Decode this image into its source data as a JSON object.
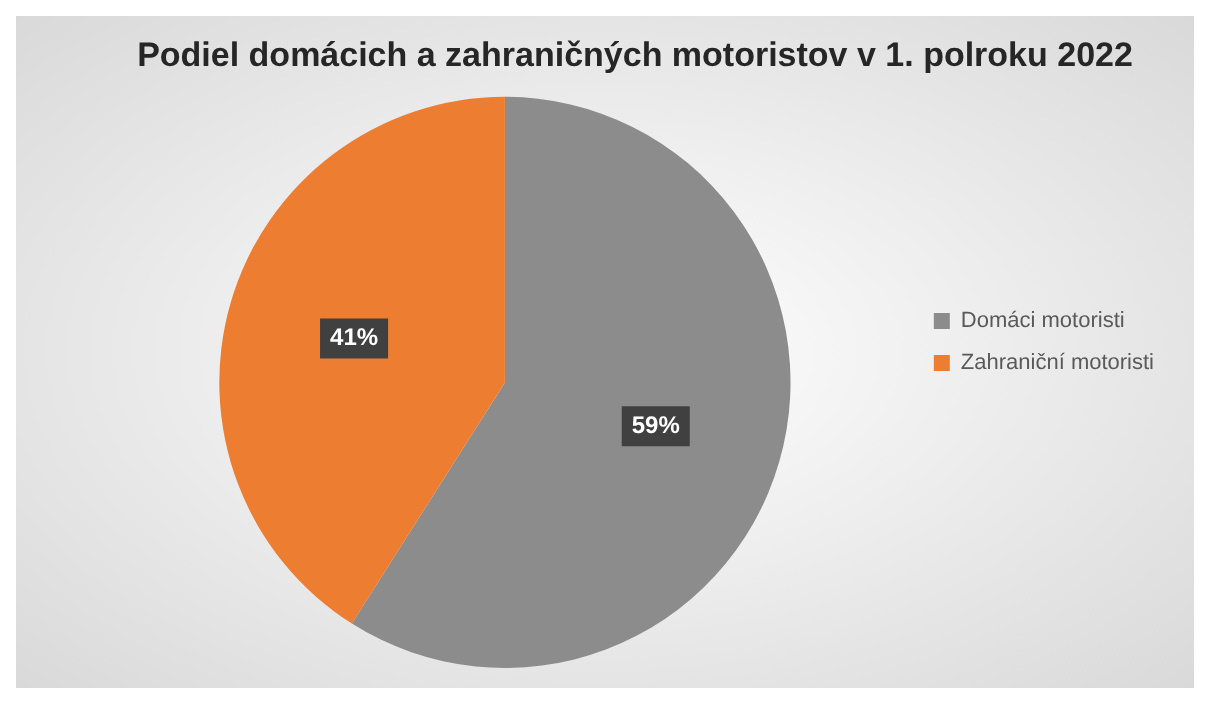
{
  "chart_data": {
    "type": "pie",
    "title": "Podiel domácich a zahraničných motoristov v 1. polroku 2022",
    "categories": [
      "Domáci motoristi",
      "Zahraniční motoristi"
    ],
    "values": [
      59,
      41
    ],
    "colors": [
      "#8c8c8c",
      "#ed7d31"
    ],
    "value_labels": [
      "59%",
      "41%"
    ],
    "legend": "right"
  }
}
